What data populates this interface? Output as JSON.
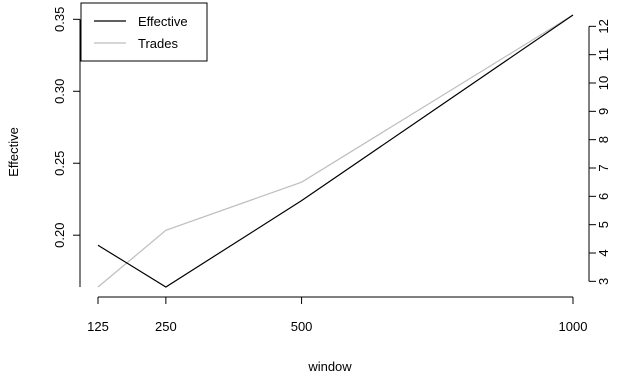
{
  "chart_data": {
    "type": "line",
    "title": "",
    "xlabel": "window",
    "ylabel": "Effective",
    "y2label": "",
    "x": [
      125,
      250,
      500,
      1000
    ],
    "x_ticks": [
      125,
      250,
      500,
      1000
    ],
    "xlim": [
      125,
      1000
    ],
    "series": [
      {
        "name": "Effective",
        "axis": "left",
        "color": "#000000",
        "values": [
          0.193,
          0.164,
          0.224,
          0.353
        ]
      },
      {
        "name": "Trades",
        "axis": "right",
        "color": "#bebebe",
        "values": [
          2.8,
          4.8,
          6.5,
          12.4
        ]
      }
    ],
    "y_left": {
      "range": [
        0.164,
        0.353
      ],
      "ticks": [
        0.2,
        0.25,
        0.3,
        0.35
      ],
      "tick_labels": [
        "0.20",
        "0.25",
        "0.30",
        "0.35"
      ]
    },
    "y_right": {
      "range": [
        2.8,
        12.4
      ],
      "ticks": [
        3,
        4,
        5,
        6,
        7,
        8,
        9,
        10,
        11,
        12
      ],
      "tick_labels": [
        "3",
        "4",
        "5",
        "6",
        "7",
        "8",
        "9",
        "10",
        "11",
        "12"
      ]
    },
    "legend": {
      "position": "top-left",
      "entries": [
        "Effective",
        "Trades"
      ]
    },
    "grid": false
  }
}
